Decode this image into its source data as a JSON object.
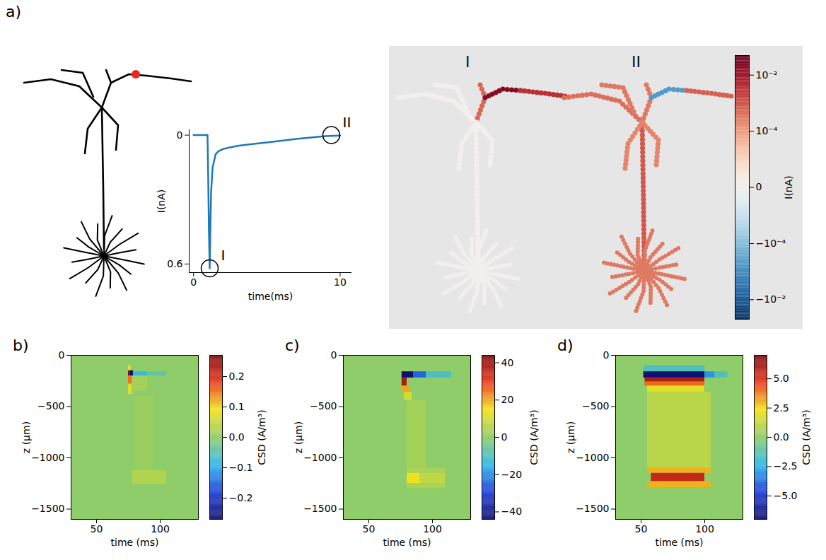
{
  "chart_data": [
    {
      "panel": "a)",
      "type": "line",
      "x_label": "time(ms)",
      "y_label": "I(nA)",
      "x": [
        0,
        0.5,
        0.9,
        0.95,
        1.0,
        1.05,
        1.1,
        1.15,
        1.2,
        1.3,
        1.5,
        1.7,
        2.0,
        2.5,
        3,
        4,
        5,
        6,
        7,
        8,
        9,
        10
      ],
      "values": [
        0,
        0,
        0,
        0,
        0.2,
        0.45,
        0.62,
        0.42,
        0.26,
        0.15,
        0.09,
        0.075,
        0.065,
        0.057,
        0.05,
        0.042,
        0.034,
        0.026,
        0.018,
        0.011,
        0.005,
        0.002
      ],
      "color": "#1f77b4",
      "xlim": [
        -0.3,
        10.8
      ],
      "ylim": [
        0.64,
        -0.025
      ],
      "xticks": [
        0,
        10
      ],
      "yticks": [
        0,
        0.6
      ],
      "annotations": [
        {
          "text": "I",
          "x": 1.1,
          "y": 0.62
        },
        {
          "text": "II",
          "x": 9.4,
          "y": 0.0
        }
      ]
    },
    {
      "type": "morphology",
      "states": [
        {
          "name": "I",
          "values": [
            0,
            0,
            0,
            0.0005,
            0.02,
            0.003,
            0,
            0,
            0
          ]
        },
        {
          "name": "II",
          "values": [
            0.0008,
            0.0004,
            0.0003,
            0.0003,
            -0.0005,
            0.0006,
            0.0002,
            0.0002,
            0.0003
          ]
        }
      ],
      "colorbar": {
        "label": "I(nA)",
        "range": [
          -0.05,
          0.05
        ],
        "log": true,
        "ticks": [
          {
            "value": 0.01,
            "label": "10⁻²"
          },
          {
            "value": 0.0001,
            "label": "10⁻⁴"
          },
          0,
          {
            "value": -0.0001,
            "label": "−10⁻⁴"
          },
          {
            "value": -0.01,
            "label": "−10⁻²"
          }
        ]
      }
    },
    {
      "panel": "b)",
      "type": "heatmap",
      "x_label": "time (ms)",
      "y_label": "z (μm)",
      "xlim": [
        30,
        130
      ],
      "ylim": [
        -1600,
        0
      ],
      "xticks": [
        50,
        100
      ],
      "yticks": [
        0,
        -500,
        -1000,
        -1500
      ],
      "cells": [
        {
          "t": [
            30,
            130
          ],
          "z": [
            -1600,
            0
          ],
          "value": 0
        },
        {
          "t": [
            75,
            77
          ],
          "z": [
            -100,
            -150
          ],
          "value": 0.08
        },
        {
          "t": [
            75,
            76.5
          ],
          "z": [
            -150,
            -200
          ],
          "value": 0.27
        },
        {
          "t": [
            76.5,
            79
          ],
          "z": [
            -150,
            -200
          ],
          "value": -0.27
        },
        {
          "t": [
            79,
            90
          ],
          "z": [
            -160,
            -200
          ],
          "value": -0.08
        },
        {
          "t": [
            90,
            105
          ],
          "z": [
            -160,
            -200
          ],
          "value": -0.04
        },
        {
          "t": [
            75,
            78
          ],
          "z": [
            -200,
            -280
          ],
          "value": 0.15
        },
        {
          "t": [
            75,
            78
          ],
          "z": [
            -280,
            -380
          ],
          "value": 0.07
        },
        {
          "t": [
            78,
            90
          ],
          "z": [
            -200,
            -350
          ],
          "value": 0.02
        },
        {
          "t": [
            80,
            95
          ],
          "z": [
            -400,
            -1100
          ],
          "value": 0.01
        },
        {
          "t": [
            78,
            105
          ],
          "z": [
            -1120,
            -1260
          ],
          "value": 0.03
        }
      ],
      "colorbar": {
        "label": "CSD (A/m³)",
        "range": [
          -0.27,
          0.27
        ],
        "ticks": [
          -0.2,
          -0.1,
          {
            "value": 0,
            "label": "0.0"
          },
          0.1,
          0.2
        ]
      }
    },
    {
      "panel": "c)",
      "type": "heatmap",
      "x_label": "time (ms)",
      "y_label": "z (μm)",
      "xlim": [
        30,
        130
      ],
      "ylim": [
        -1600,
        0
      ],
      "xticks": [
        50,
        100
      ],
      "yticks": [
        0,
        -500,
        -1000,
        -1500
      ],
      "cells": [
        {
          "t": [
            30,
            130
          ],
          "z": [
            -1600,
            0
          ],
          "value": 0
        },
        {
          "t": [
            76,
            85
          ],
          "z": [
            -160,
            -220
          ],
          "value": -44
        },
        {
          "t": [
            85,
            95
          ],
          "z": [
            -160,
            -220
          ],
          "value": -25
        },
        {
          "t": [
            95,
            115
          ],
          "z": [
            -160,
            -220
          ],
          "value": -10
        },
        {
          "t": [
            76,
            80
          ],
          "z": [
            -220,
            -300
          ],
          "value": 38
        },
        {
          "t": [
            76,
            82
          ],
          "z": [
            -300,
            -360
          ],
          "value": 20
        },
        {
          "t": [
            78,
            84
          ],
          "z": [
            -360,
            -440
          ],
          "value": 10
        },
        {
          "t": [
            80,
            95
          ],
          "z": [
            -440,
            -1100
          ],
          "value": 3
        },
        {
          "t": [
            80,
            110
          ],
          "z": [
            -1100,
            -1150
          ],
          "value": 4
        },
        {
          "t": [
            80,
            110
          ],
          "z": [
            -1250,
            -1300
          ],
          "value": 4
        },
        {
          "t": [
            80,
            90
          ],
          "z": [
            -1150,
            -1250
          ],
          "value": 14
        },
        {
          "t": [
            90,
            110
          ],
          "z": [
            -1150,
            -1250
          ],
          "value": 7
        }
      ],
      "colorbar": {
        "label": "CSD (A/m³)",
        "range": [
          -44,
          44
        ],
        "ticks": [
          -40,
          -20,
          0,
          20,
          40
        ]
      }
    },
    {
      "panel": "d)",
      "type": "heatmap",
      "x_label": "time (ms)",
      "y_label": "z (μm)",
      "xlim": [
        30,
        130
      ],
      "ylim": [
        -1600,
        0
      ],
      "xticks": [
        50,
        100
      ],
      "yticks": [
        0,
        -500,
        -1000,
        -1500
      ],
      "cells": [
        {
          "t": [
            30,
            130
          ],
          "z": [
            -1600,
            0
          ],
          "value": 0
        },
        {
          "t": [
            52,
            100
          ],
          "z": [
            -100,
            -160
          ],
          "value": -1.5
        },
        {
          "t": [
            52,
            100
          ],
          "z": [
            -160,
            -220
          ],
          "value": -7
        },
        {
          "t": [
            100,
            108
          ],
          "z": [
            -160,
            -220
          ],
          "value": -3
        },
        {
          "t": [
            108,
            118
          ],
          "z": [
            -160,
            -220
          ],
          "value": -1.5
        },
        {
          "t": [
            53,
            100
          ],
          "z": [
            -220,
            -260
          ],
          "value": 6
        },
        {
          "t": [
            53,
            100
          ],
          "z": [
            -260,
            -300
          ],
          "value": 4
        },
        {
          "t": [
            55,
            100
          ],
          "z": [
            -300,
            -360
          ],
          "value": 2
        },
        {
          "t": [
            55,
            105
          ],
          "z": [
            -360,
            -1100
          ],
          "value": 1
        },
        {
          "t": [
            55,
            105
          ],
          "z": [
            -1100,
            -1150
          ],
          "value": 3
        },
        {
          "t": [
            55,
            105
          ],
          "z": [
            -1230,
            -1290
          ],
          "value": 3
        },
        {
          "t": [
            58,
            100
          ],
          "z": [
            -1150,
            -1230
          ],
          "value": 5.5
        }
      ],
      "colorbar": {
        "label": "CSD (A/m³)",
        "range": [
          -7,
          7
        ],
        "ticks": [
          {
            "value": -5,
            "label": "−5.0"
          },
          -2.5,
          {
            "value": 0,
            "label": "0.0"
          },
          2.5,
          {
            "value": 5,
            "label": "5.0"
          }
        ]
      }
    }
  ]
}
